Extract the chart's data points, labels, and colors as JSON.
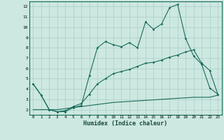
{
  "xlabel": "Humidex (Indice chaleur)",
  "background_color": "#cce8e0",
  "grid_color": "#aacccc",
  "line_color": "#1a6b5a",
  "x_values": [
    0,
    1,
    2,
    3,
    4,
    5,
    6,
    7,
    8,
    9,
    10,
    11,
    12,
    13,
    14,
    15,
    16,
    17,
    18,
    19,
    20,
    21,
    22,
    23
  ],
  "line1": [
    4.5,
    3.4,
    2.0,
    1.8,
    1.8,
    2.2,
    2.4,
    5.3,
    8.0,
    8.6,
    8.3,
    8.1,
    8.5,
    8.0,
    10.5,
    9.8,
    10.3,
    11.9,
    12.2,
    8.9,
    7.2,
    6.4,
    4.1,
    3.5
  ],
  "line2": [
    4.5,
    3.4,
    2.0,
    1.8,
    1.9,
    2.3,
    2.6,
    3.5,
    4.5,
    5.0,
    5.5,
    5.7,
    5.9,
    6.2,
    6.5,
    6.6,
    6.8,
    7.1,
    7.3,
    7.6,
    7.8,
    6.5,
    5.8,
    3.5
  ],
  "line3": [
    2.0,
    2.0,
    2.0,
    2.0,
    2.1,
    2.2,
    2.3,
    2.4,
    2.5,
    2.6,
    2.7,
    2.75,
    2.8,
    2.85,
    2.9,
    2.95,
    3.0,
    3.05,
    3.1,
    3.15,
    3.2,
    3.2,
    3.2,
    3.4
  ],
  "ylim": [
    1.5,
    12.5
  ],
  "xlim": [
    -0.5,
    23.5
  ],
  "yticks": [
    2,
    3,
    4,
    5,
    6,
    7,
    8,
    9,
    10,
    11,
    12
  ]
}
